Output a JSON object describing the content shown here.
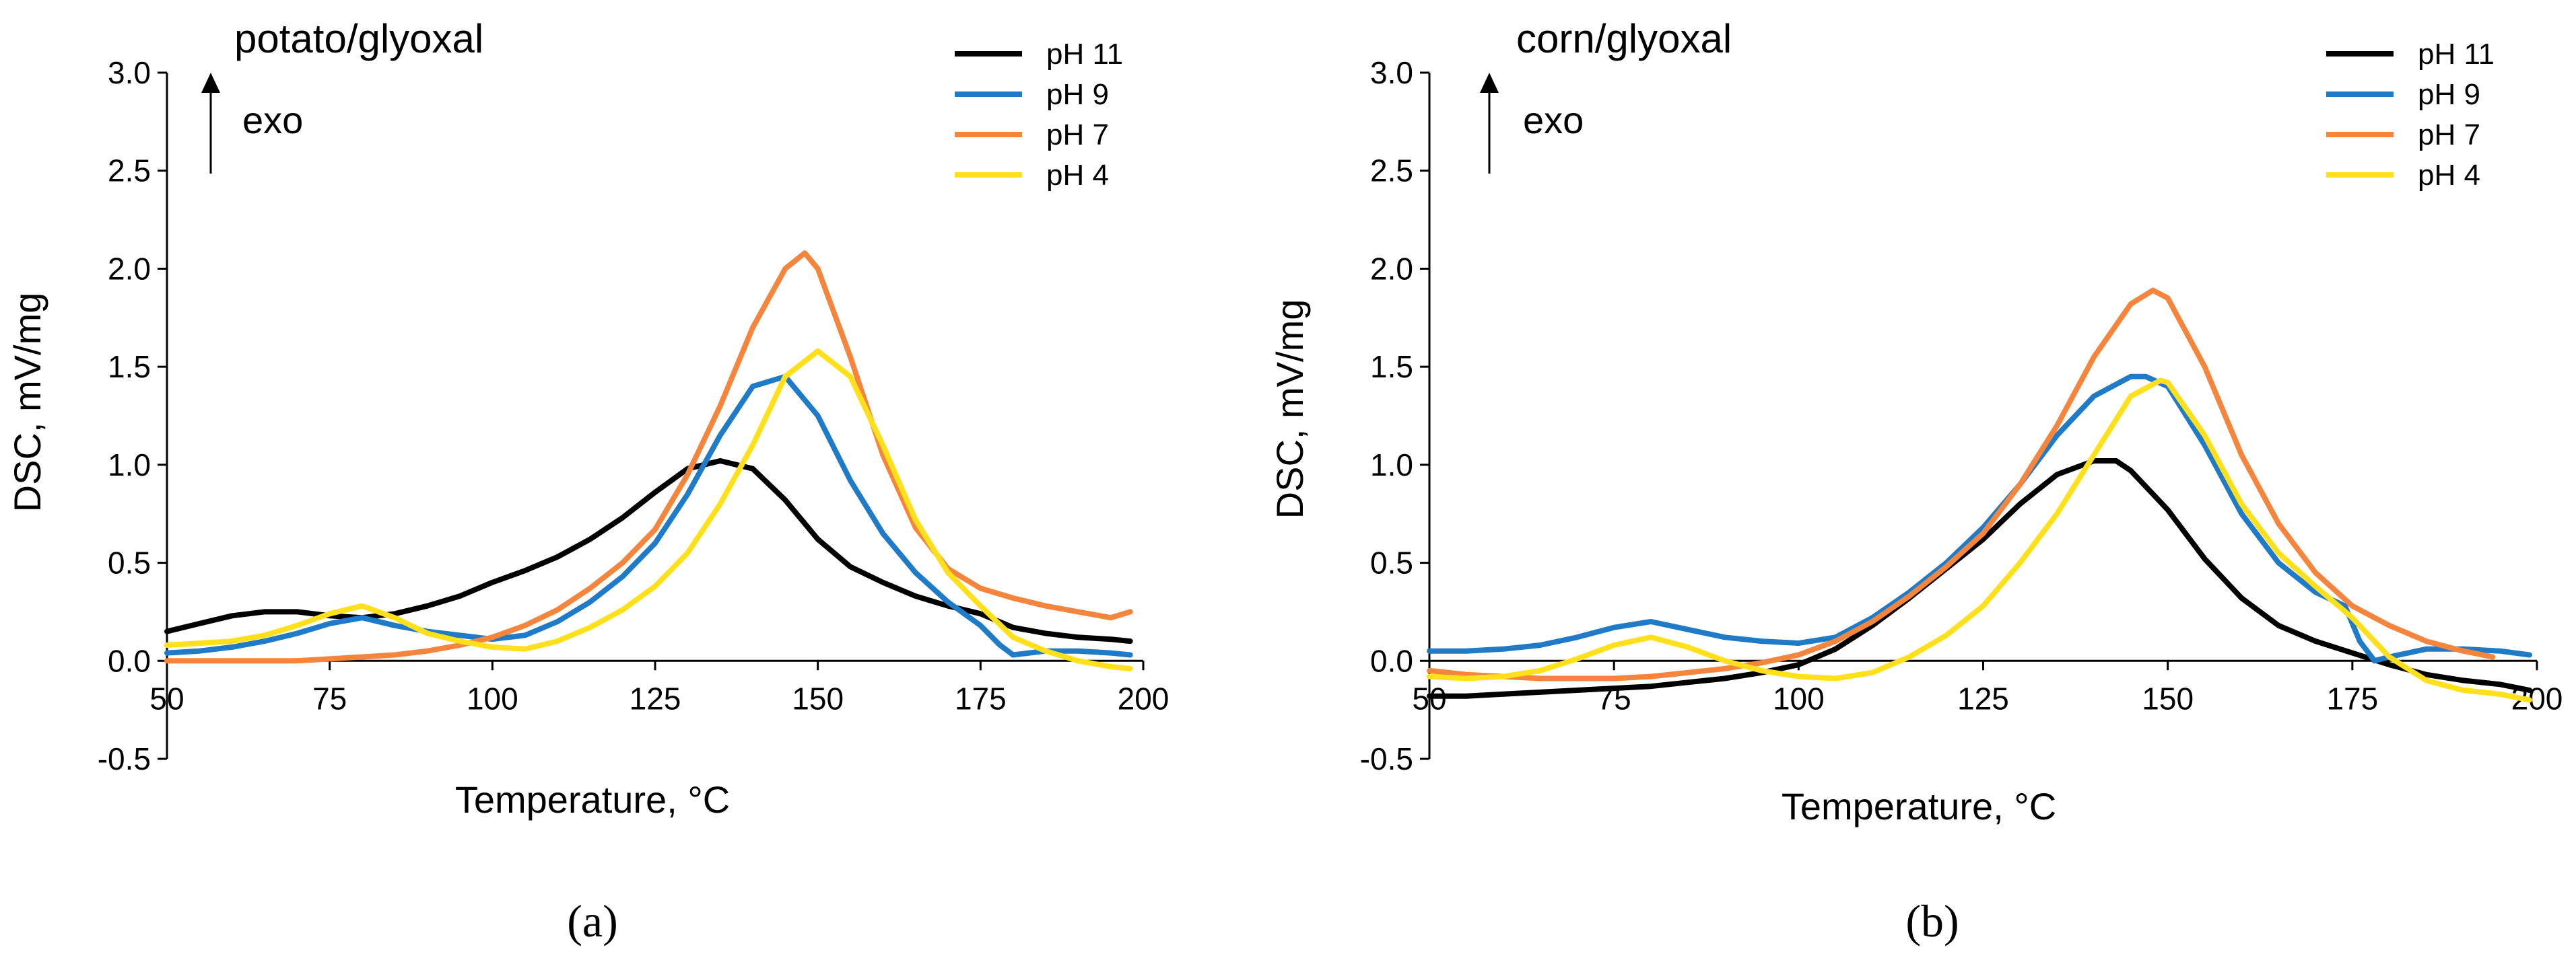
{
  "chart_data": [
    {
      "type": "line",
      "panel_label": "(a)",
      "title": "potato/glyoxal",
      "annotation": "exo",
      "xlabel": "Temperature, °C",
      "ylabel": "DSC, mV/mg",
      "xlim": [
        50,
        200
      ],
      "ylim": [
        -0.5,
        3.0
      ],
      "xticks": [
        50,
        75,
        100,
        125,
        150,
        175,
        200
      ],
      "xtick_labels": [
        "50",
        "75",
        "100",
        "125",
        "150",
        "175",
        "200"
      ],
      "yticks": [
        -0.5,
        0.0,
        0.5,
        1.0,
        1.5,
        2.0,
        2.5,
        3.0
      ],
      "ytick_labels": [
        "-0.5",
        "0.0",
        "0.5",
        "1.0",
        "1.5",
        "2.0",
        "2.5",
        "3.0"
      ],
      "grid": false,
      "legend_position": "top-right",
      "series": [
        {
          "name": "pH 11",
          "color": "#000000",
          "x": [
            50,
            55,
            60,
            65,
            70,
            75,
            80,
            85,
            90,
            95,
            100,
            105,
            110,
            115,
            120,
            125,
            130,
            135,
            140,
            145,
            150,
            155,
            160,
            165,
            170,
            175,
            180,
            185,
            190,
            195,
            198
          ],
          "y": [
            0.15,
            0.19,
            0.23,
            0.25,
            0.25,
            0.23,
            0.22,
            0.24,
            0.28,
            0.33,
            0.4,
            0.46,
            0.53,
            0.62,
            0.73,
            0.86,
            0.98,
            1.02,
            0.98,
            0.82,
            0.62,
            0.48,
            0.4,
            0.33,
            0.28,
            0.24,
            0.17,
            0.14,
            0.12,
            0.11,
            0.1
          ]
        },
        {
          "name": "pH 9",
          "color": "#1f7bc8",
          "x": [
            50,
            55,
            60,
            65,
            70,
            75,
            80,
            85,
            90,
            95,
            100,
            105,
            110,
            115,
            120,
            125,
            130,
            135,
            140,
            145,
            150,
            155,
            160,
            165,
            170,
            175,
            178,
            180,
            185,
            190,
            195,
            198
          ],
          "y": [
            0.04,
            0.05,
            0.07,
            0.1,
            0.14,
            0.19,
            0.22,
            0.18,
            0.15,
            0.13,
            0.11,
            0.13,
            0.2,
            0.3,
            0.43,
            0.6,
            0.85,
            1.15,
            1.4,
            1.45,
            1.25,
            0.92,
            0.65,
            0.45,
            0.3,
            0.18,
            0.08,
            0.03,
            0.05,
            0.05,
            0.04,
            0.03
          ]
        },
        {
          "name": "pH 7",
          "color": "#f5853c",
          "x": [
            50,
            55,
            60,
            65,
            70,
            75,
            80,
            85,
            90,
            95,
            100,
            105,
            110,
            115,
            120,
            125,
            130,
            135,
            140,
            145,
            148,
            150,
            155,
            160,
            165,
            170,
            175,
            180,
            185,
            190,
            195,
            198
          ],
          "y": [
            0.0,
            0.0,
            0.0,
            0.0,
            0.0,
            0.01,
            0.02,
            0.03,
            0.05,
            0.08,
            0.12,
            0.18,
            0.26,
            0.37,
            0.5,
            0.67,
            0.95,
            1.3,
            1.7,
            2.0,
            2.08,
            2.0,
            1.55,
            1.05,
            0.68,
            0.47,
            0.37,
            0.32,
            0.28,
            0.25,
            0.22,
            0.25
          ]
        },
        {
          "name": "pH 4",
          "color": "#ffe01a",
          "x": [
            50,
            55,
            60,
            65,
            70,
            75,
            80,
            85,
            90,
            95,
            100,
            105,
            110,
            115,
            120,
            125,
            130,
            135,
            140,
            145,
            150,
            155,
            160,
            165,
            170,
            175,
            180,
            185,
            190,
            195,
            198
          ],
          "y": [
            0.08,
            0.09,
            0.1,
            0.13,
            0.18,
            0.24,
            0.28,
            0.22,
            0.14,
            0.1,
            0.07,
            0.06,
            0.1,
            0.17,
            0.26,
            0.38,
            0.55,
            0.8,
            1.1,
            1.45,
            1.58,
            1.45,
            1.1,
            0.72,
            0.45,
            0.28,
            0.12,
            0.05,
            0.0,
            -0.03,
            -0.04
          ]
        }
      ]
    },
    {
      "type": "line",
      "panel_label": "(b)",
      "title": "corn/glyoxal",
      "annotation": "exo",
      "xlabel": "Temperature, °C",
      "ylabel": "DSC, mV/mg",
      "xlim": [
        50,
        200
      ],
      "ylim": [
        -0.5,
        3.0
      ],
      "xticks": [
        50,
        75,
        100,
        125,
        150,
        175,
        200
      ],
      "xtick_labels": [
        "50",
        "75",
        "100",
        "125",
        "150",
        "175",
        "200"
      ],
      "yticks": [
        -0.5,
        0.0,
        0.5,
        1.0,
        1.5,
        2.0,
        2.5,
        3.0
      ],
      "ytick_labels": [
        "-0.5",
        "0.0",
        "0.5",
        "1.0",
        "1.5",
        "2.0",
        "2.5",
        "3.0"
      ],
      "grid": false,
      "legend_position": "top-right",
      "series": [
        {
          "name": "pH 11",
          "color": "#000000",
          "x": [
            50,
            55,
            60,
            65,
            70,
            75,
            80,
            85,
            90,
            95,
            100,
            105,
            110,
            115,
            120,
            125,
            130,
            135,
            140,
            143,
            145,
            150,
            155,
            160,
            165,
            170,
            175,
            180,
            185,
            190,
            195,
            199
          ],
          "y": [
            -0.18,
            -0.18,
            -0.17,
            -0.16,
            -0.15,
            -0.14,
            -0.13,
            -0.11,
            -0.09,
            -0.06,
            -0.02,
            0.06,
            0.18,
            0.32,
            0.47,
            0.62,
            0.8,
            0.95,
            1.02,
            1.02,
            0.97,
            0.77,
            0.52,
            0.32,
            0.18,
            0.1,
            0.04,
            -0.02,
            -0.07,
            -0.1,
            -0.12,
            -0.15
          ]
        },
        {
          "name": "pH 9",
          "color": "#1f7bc8",
          "x": [
            50,
            55,
            60,
            65,
            70,
            75,
            80,
            85,
            90,
            95,
            100,
            105,
            110,
            115,
            120,
            125,
            130,
            135,
            140,
            145,
            147,
            150,
            155,
            160,
            165,
            170,
            174,
            176,
            178,
            180,
            185,
            190,
            195,
            199
          ],
          "y": [
            0.05,
            0.05,
            0.06,
            0.08,
            0.12,
            0.17,
            0.2,
            0.16,
            0.12,
            0.1,
            0.09,
            0.12,
            0.22,
            0.35,
            0.5,
            0.68,
            0.9,
            1.15,
            1.35,
            1.45,
            1.45,
            1.4,
            1.1,
            0.75,
            0.5,
            0.35,
            0.28,
            0.1,
            0.0,
            0.02,
            0.06,
            0.06,
            0.05,
            0.03
          ]
        },
        {
          "name": "pH 7",
          "color": "#f5853c",
          "x": [
            50,
            55,
            60,
            65,
            70,
            75,
            80,
            85,
            90,
            95,
            100,
            105,
            110,
            115,
            120,
            125,
            130,
            135,
            140,
            145,
            148,
            150,
            155,
            160,
            165,
            170,
            175,
            180,
            185,
            190,
            194
          ],
          "y": [
            -0.05,
            -0.07,
            -0.08,
            -0.09,
            -0.09,
            -0.09,
            -0.08,
            -0.06,
            -0.04,
            -0.01,
            0.03,
            0.1,
            0.2,
            0.33,
            0.48,
            0.65,
            0.9,
            1.2,
            1.55,
            1.82,
            1.89,
            1.85,
            1.5,
            1.05,
            0.7,
            0.45,
            0.28,
            0.18,
            0.1,
            0.05,
            0.02
          ]
        },
        {
          "name": "pH 4",
          "color": "#ffe01a",
          "x": [
            50,
            55,
            60,
            65,
            70,
            75,
            80,
            85,
            90,
            95,
            100,
            105,
            110,
            115,
            120,
            125,
            130,
            135,
            140,
            145,
            149,
            150,
            155,
            160,
            165,
            170,
            175,
            180,
            185,
            190,
            195,
            199
          ],
          "y": [
            -0.08,
            -0.09,
            -0.08,
            -0.05,
            0.01,
            0.08,
            0.12,
            0.07,
            0.0,
            -0.05,
            -0.08,
            -0.09,
            -0.06,
            0.02,
            0.13,
            0.28,
            0.5,
            0.75,
            1.05,
            1.35,
            1.43,
            1.42,
            1.15,
            0.8,
            0.55,
            0.38,
            0.22,
            0.02,
            -0.1,
            -0.15,
            -0.17,
            -0.2
          ]
        }
      ]
    }
  ]
}
